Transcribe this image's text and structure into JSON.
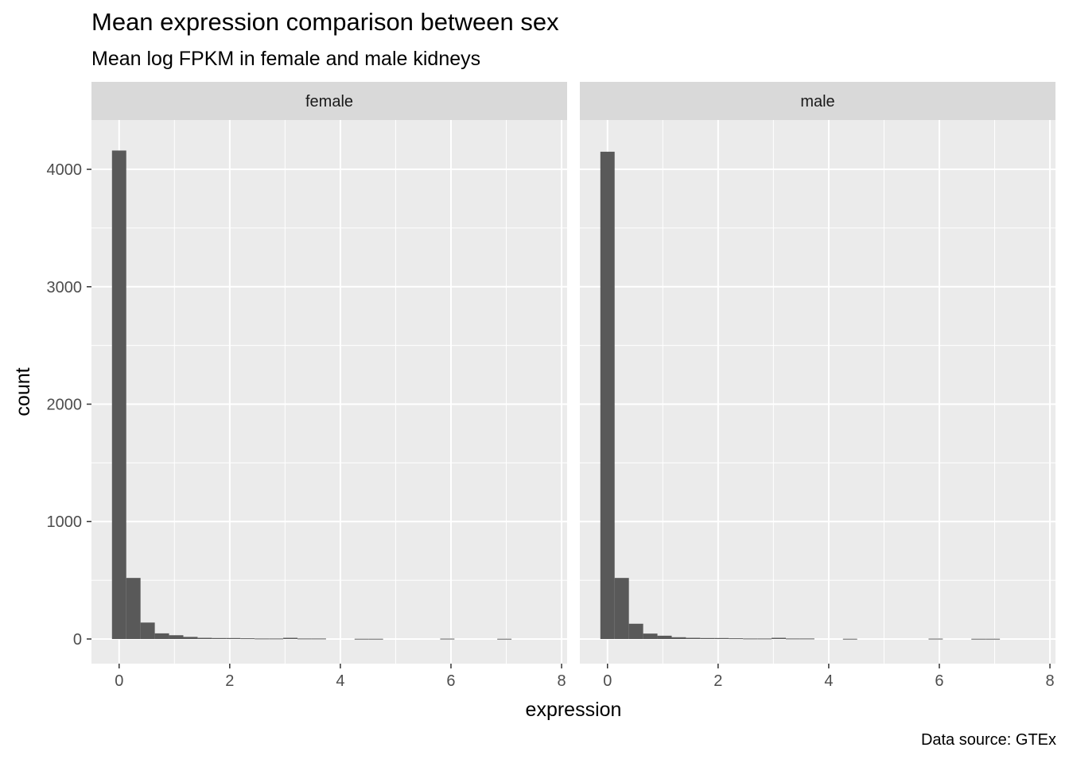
{
  "header": {
    "title": "Mean expression comparison between sex",
    "subtitle": "Mean log FPKM in female and male kidneys"
  },
  "caption": "Data source: GTEx",
  "chart_data": {
    "type": "bar",
    "subtype": "faceted-histogram",
    "title": "Mean expression comparison between sex",
    "subtitle": "Mean log FPKM in female and male kidneys",
    "xlabel": "expression",
    "ylabel": "count",
    "xlim": [
      -0.5,
      8.1
    ],
    "ylim": [
      -210,
      4420
    ],
    "x_ticks": [
      0,
      2,
      4,
      6,
      8
    ],
    "y_ticks": [
      0,
      1000,
      2000,
      3000,
      4000
    ],
    "x_tick_labels": [
      "0",
      "2",
      "4",
      "6",
      "8"
    ],
    "y_tick_labels": [
      "0",
      "1000",
      "2000",
      "3000",
      "4000"
    ],
    "grid": true,
    "bar_color": "#595959",
    "panel_background": "#ebebeb",
    "strip_background": "#d9d9d9",
    "gridline_color": "#ffffff",
    "facets": [
      {
        "label": "female",
        "bin_width": 0.258,
        "bin_start": -0.129,
        "counts": [
          4160,
          520,
          140,
          48,
          32,
          18,
          10,
          8,
          8,
          6,
          4,
          4,
          10,
          4,
          4,
          0,
          0,
          2,
          2,
          0,
          0,
          0,
          0,
          3,
          0,
          0,
          0,
          2,
          0,
          0
        ]
      },
      {
        "label": "male",
        "bin_width": 0.258,
        "bin_start": -0.129,
        "counts": [
          4150,
          520,
          130,
          46,
          28,
          15,
          10,
          8,
          8,
          6,
          4,
          4,
          10,
          4,
          4,
          0,
          0,
          2,
          0,
          0,
          0,
          0,
          0,
          3,
          0,
          0,
          2,
          2,
          0,
          0
        ]
      }
    ]
  }
}
